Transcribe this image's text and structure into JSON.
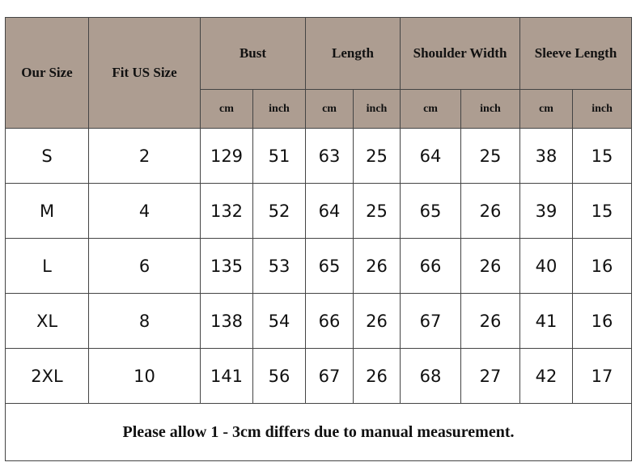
{
  "header_bg": "#ad9d91",
  "headers": {
    "our_size": "Our Size",
    "fit_us_size": "Fit US Size",
    "groups": [
      "Bust",
      "Length",
      "Shoulder Width",
      "Sleeve Length"
    ],
    "units": [
      "cm",
      "inch",
      "cm",
      "inch",
      "cm",
      "inch",
      "cm",
      "inch"
    ]
  },
  "rows": [
    [
      "S",
      "2",
      "129",
      "51",
      "63",
      "25",
      "64",
      "25",
      "38",
      "15"
    ],
    [
      "M",
      "4",
      "132",
      "52",
      "64",
      "25",
      "65",
      "26",
      "39",
      "15"
    ],
    [
      "L",
      "6",
      "135",
      "53",
      "65",
      "26",
      "66",
      "26",
      "40",
      "16"
    ],
    [
      "XL",
      "8",
      "138",
      "54",
      "66",
      "26",
      "67",
      "26",
      "41",
      "16"
    ],
    [
      "2XL",
      "10",
      "141",
      "56",
      "67",
      "26",
      "68",
      "27",
      "42",
      "17"
    ]
  ],
  "note": "Please allow 1 - 3cm differs due to manual measurement."
}
